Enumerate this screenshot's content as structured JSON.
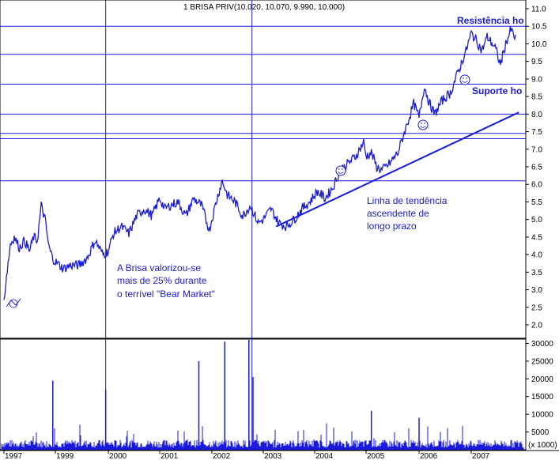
{
  "chart_data": {
    "type": "line",
    "title": "1 BRISA PRIV(10.020, 10.070, 9.990, 10.000)",
    "y_ticks": [
      "11.0",
      "10.5",
      "10.0",
      "9.5",
      "9.0",
      "8.5",
      "8.0",
      "7.5",
      "7.0",
      "6.5",
      "6.0",
      "5.5",
      "5.0",
      "4.5",
      "4.0",
      "3.5",
      "3.0",
      "2.5",
      "2.0"
    ],
    "ylim": [
      1.9,
      11.1
    ],
    "volume_ticks": [
      "30000",
      "25000",
      "20000",
      "15000",
      "10000",
      "5000"
    ],
    "volume_ylim": [
      0,
      31000
    ],
    "volume_axis_label": "(x 1000)",
    "x_ticks": [
      "1997",
      "1999",
      "2000",
      "2001",
      "2002",
      "2003",
      "2004",
      "2005",
      "2006",
      "2007"
    ],
    "series": [
      {
        "values_x": [
          1997.0,
          1997.1,
          1997.25,
          1997.4,
          1997.6,
          1997.8,
          1998.0,
          1998.15,
          1998.3,
          1998.45,
          1998.6,
          1998.75,
          1998.9,
          1999.0,
          1999.15,
          1999.3,
          1999.45,
          1999.6,
          1999.75,
          1999.9,
          2000.0,
          2000.1,
          2000.25,
          2000.4,
          2000.55,
          2000.7,
          2000.85,
          2001.0,
          2001.1,
          2001.2,
          2001.35,
          2001.5,
          2001.65,
          2001.8,
          2001.95,
          2002.1,
          2002.2,
          2002.3,
          2002.45,
          2002.6,
          2002.75,
          2002.9,
          2003.0,
          2003.15,
          2003.3,
          2003.45,
          2003.6,
          2003.75,
          2003.9,
          2004.05,
          2004.2,
          2004.35,
          2004.5,
          2004.65,
          2004.8,
          2004.95,
          2005.0,
          2005.1,
          2005.2,
          2005.3,
          2005.45,
          2005.6,
          2005.75,
          2005.9,
          2006.0,
          2006.1,
          2006.2,
          2006.3,
          2006.45,
          2006.6,
          2006.75,
          2006.9,
          2007.0,
          2007.1,
          2007.2,
          2007.3,
          2007.45,
          2007.55,
          2007.65,
          2007.75,
          2007.85
        ],
        "values_y": [
          2.7,
          3.4,
          4.3,
          4.5,
          4.2,
          4.4,
          4.1,
          4.5,
          4.4,
          5.4,
          5.0,
          4.2,
          3.9,
          3.8,
          3.6,
          3.7,
          3.7,
          3.9,
          4.4,
          4.0,
          4.1,
          4.6,
          4.8,
          4.6,
          5.1,
          5.3,
          5.1,
          5.6,
          5.3,
          5.4,
          5.5,
          5.1,
          5.6,
          5.4,
          4.7,
          5.6,
          6.1,
          5.7,
          5.5,
          5.1,
          5.4,
          4.9,
          5.0,
          5.3,
          4.9,
          4.8,
          5.0,
          5.3,
          5.5,
          5.8,
          5.6,
          5.9,
          6.4,
          6.6,
          6.8,
          7.2,
          6.8,
          6.9,
          6.5,
          6.4,
          6.6,
          6.9,
          7.6,
          8.3,
          7.9,
          8.8,
          8.3,
          8.0,
          8.4,
          8.6,
          9.2,
          9.8,
          10.3,
          10.1,
          9.8,
          10.2,
          9.9,
          9.4,
          10.0,
          10.4,
          10.1
        ]
      }
    ],
    "volume_spikes": [
      {
        "x": 2002.25,
        "v": 30500
      },
      {
        "x": 2002.72,
        "v": 31000
      },
      {
        "x": 2002.8,
        "v": 20500
      },
      {
        "x": 2001.75,
        "v": 25000
      },
      {
        "x": 1999.95,
        "v": 17000
      },
      {
        "x": 1998.9,
        "v": 19500
      },
      {
        "x": 2005.1,
        "v": 11000
      },
      {
        "x": 2006.0,
        "v": 9000
      }
    ],
    "horizontal_lines": [
      10.5,
      9.7,
      8.85,
      8.0,
      7.45,
      7.3,
      6.1
    ],
    "vertical_lines": [
      1999.95,
      2002.78
    ],
    "trendline": {
      "x1": 2003.25,
      "y1": 4.8,
      "x2": 2007.9,
      "y2": 8.05
    }
  },
  "annotations": {
    "resistance": "Resistência ho",
    "support": "Suporte ho",
    "trend_line1": "Linha de tendência",
    "trend_line2": "ascendente de",
    "trend_line3": "longo prazo",
    "note_line1": "A Brisa valorizou-se",
    "note_line2": "mais de 25%  durante",
    "note_line3": "o terrível \"Bear Market\""
  },
  "colors": {
    "series": "#1a1adc",
    "grid_lines": "#1a1adc",
    "axis": "#000000",
    "background": "#ffffff"
  }
}
